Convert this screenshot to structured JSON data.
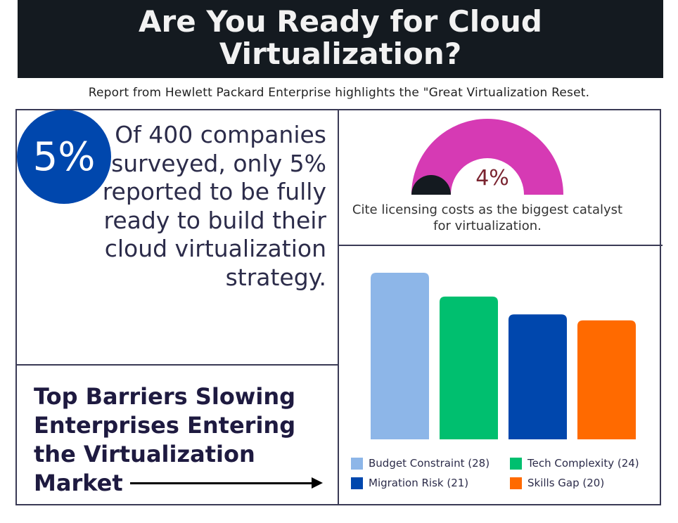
{
  "header": {
    "title_line1": "Are You Ready for Cloud",
    "title_line2": "Virtualization?"
  },
  "subtitle": "Report from Hewlett Packard Enterprise highlights the \"Great Virtualization Reset.",
  "stat": {
    "badge": "5%",
    "text": "Of 400 companies surveyed, only 5% reported to be fully ready to build their cloud virtualization strategy.",
    "badge_color": "#0047ad"
  },
  "gauge": {
    "value_label": "4%",
    "value": 4,
    "caption": "Cite licensing costs as the biggest catalyst for virtualization.",
    "fill_color": "#d63ab4",
    "marker_color": "#141a20"
  },
  "barriers": {
    "title": "Top Barriers Slowing Enterprises Entering the Virtualization Market"
  },
  "chart_data": {
    "type": "bar",
    "title": "",
    "categories": [
      "Budget Constraint",
      "Tech Complexity",
      "Migration Risk",
      "Skills Gap"
    ],
    "values": [
      28,
      24,
      21,
      20
    ],
    "colors": [
      "#8db6e8",
      "#00bf6f",
      "#0047ad",
      "#ff6a00"
    ],
    "legend": [
      "Budget Constraint (28)",
      "Tech Complexity (24)",
      "Migration Risk (21)",
      "Skills Gap (20)"
    ],
    "legend_placement": "bottom",
    "ylim": [
      0,
      28
    ],
    "grid": false
  }
}
